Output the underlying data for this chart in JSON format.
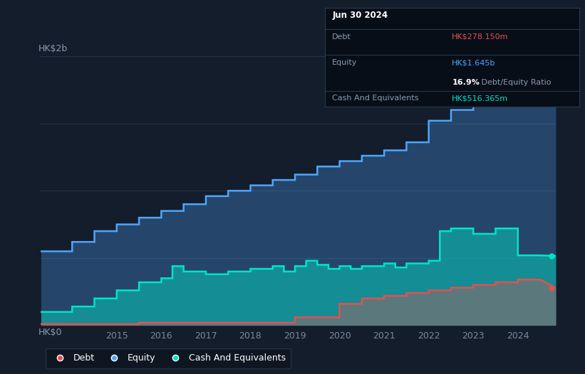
{
  "bg_color": "#141d2b",
  "plot_bg_color": "#141d2b",
  "grid_color": "#253347",
  "title_box": {
    "date": "Jun 30 2024",
    "debt_label": "Debt",
    "debt_value": "HK$278.150m",
    "debt_color": "#e05252",
    "equity_label": "Equity",
    "equity_value": "HK$1.645b",
    "equity_color": "#4da6ff",
    "ratio_bold": "16.9%",
    "ratio_text": " Debt/Equity Ratio",
    "cash_label": "Cash And Equivalents",
    "cash_value": "HK$516.365m",
    "cash_color": "#00e5c8",
    "box_bg": "#080e18",
    "box_border": "#2a3a4a"
  },
  "ylabel": "HK$2b",
  "ylabel_bottom": "HK$0",
  "ylim": [
    0,
    2.0
  ],
  "xlim": [
    2013.3,
    2024.85
  ],
  "year_ticks": [
    2015,
    2016,
    2017,
    2018,
    2019,
    2020,
    2021,
    2022,
    2023,
    2024
  ],
  "line_colors": {
    "debt": "#e05252",
    "equity": "#4da6ff",
    "cash": "#00e5c8"
  },
  "legend": [
    {
      "label": "Debt",
      "color": "#e05252"
    },
    {
      "label": "Equity",
      "color": "#4da6ff"
    },
    {
      "label": "Cash And Equivalents",
      "color": "#00e5c8"
    }
  ],
  "equity_data": {
    "x": [
      2013.3,
      2013.5,
      2014.0,
      2014.0,
      2014.5,
      2014.5,
      2015.0,
      2015.0,
      2015.5,
      2015.5,
      2016.0,
      2016.0,
      2016.5,
      2016.5,
      2017.0,
      2017.0,
      2017.5,
      2017.5,
      2018.0,
      2018.0,
      2018.5,
      2018.5,
      2019.0,
      2019.0,
      2019.5,
      2019.5,
      2020.0,
      2020.0,
      2020.5,
      2020.5,
      2021.0,
      2021.0,
      2021.5,
      2021.5,
      2022.0,
      2022.0,
      2022.5,
      2022.5,
      2023.0,
      2023.0,
      2023.5,
      2023.5,
      2024.0,
      2024.0,
      2024.5,
      2024.85
    ],
    "y": [
      0.55,
      0.55,
      0.55,
      0.62,
      0.62,
      0.7,
      0.7,
      0.75,
      0.75,
      0.8,
      0.8,
      0.85,
      0.85,
      0.9,
      0.9,
      0.96,
      0.96,
      1.0,
      1.0,
      1.04,
      1.04,
      1.08,
      1.08,
      1.12,
      1.12,
      1.18,
      1.18,
      1.22,
      1.22,
      1.26,
      1.26,
      1.3,
      1.3,
      1.36,
      1.36,
      1.52,
      1.52,
      1.6,
      1.6,
      1.65,
      1.65,
      1.9,
      1.9,
      1.75,
      1.75,
      1.645
    ]
  },
  "cash_data": {
    "x": [
      2013.3,
      2013.5,
      2014.0,
      2014.0,
      2014.5,
      2014.5,
      2015.0,
      2015.0,
      2015.5,
      2015.5,
      2016.0,
      2016.0,
      2016.25,
      2016.25,
      2016.5,
      2016.5,
      2017.0,
      2017.0,
      2017.5,
      2017.5,
      2018.0,
      2018.0,
      2018.5,
      2018.5,
      2018.75,
      2018.75,
      2019.0,
      2019.0,
      2019.25,
      2019.25,
      2019.5,
      2019.5,
      2019.75,
      2019.75,
      2020.0,
      2020.0,
      2020.25,
      2020.25,
      2020.5,
      2020.5,
      2021.0,
      2021.0,
      2021.25,
      2021.25,
      2021.5,
      2021.5,
      2022.0,
      2022.0,
      2022.25,
      2022.25,
      2022.5,
      2022.5,
      2023.0,
      2023.0,
      2023.5,
      2023.5,
      2024.0,
      2024.0,
      2024.5,
      2024.85
    ],
    "y": [
      0.1,
      0.1,
      0.1,
      0.14,
      0.14,
      0.2,
      0.2,
      0.26,
      0.26,
      0.32,
      0.32,
      0.35,
      0.35,
      0.44,
      0.44,
      0.4,
      0.4,
      0.38,
      0.38,
      0.4,
      0.4,
      0.42,
      0.42,
      0.44,
      0.44,
      0.4,
      0.4,
      0.44,
      0.44,
      0.48,
      0.48,
      0.45,
      0.45,
      0.42,
      0.42,
      0.44,
      0.44,
      0.42,
      0.42,
      0.44,
      0.44,
      0.46,
      0.46,
      0.43,
      0.43,
      0.46,
      0.46,
      0.48,
      0.48,
      0.7,
      0.7,
      0.72,
      0.72,
      0.68,
      0.68,
      0.72,
      0.72,
      0.52,
      0.52,
      0.516
    ]
  },
  "debt_data": {
    "x": [
      2013.3,
      2013.5,
      2014.0,
      2014.0,
      2014.5,
      2014.5,
      2015.0,
      2015.0,
      2015.5,
      2015.5,
      2016.0,
      2016.0,
      2016.5,
      2016.5,
      2017.0,
      2017.0,
      2017.5,
      2017.5,
      2018.0,
      2018.0,
      2018.5,
      2018.5,
      2019.0,
      2019.0,
      2019.5,
      2019.5,
      2020.0,
      2020.0,
      2020.5,
      2020.5,
      2021.0,
      2021.0,
      2021.5,
      2021.5,
      2022.0,
      2022.0,
      2022.5,
      2022.5,
      2023.0,
      2023.0,
      2023.5,
      2023.5,
      2024.0,
      2024.0,
      2024.5,
      2024.85
    ],
    "y": [
      0.01,
      0.01,
      0.01,
      0.01,
      0.01,
      0.01,
      0.01,
      0.01,
      0.01,
      0.02,
      0.02,
      0.02,
      0.02,
      0.02,
      0.02,
      0.02,
      0.02,
      0.02,
      0.02,
      0.02,
      0.02,
      0.02,
      0.02,
      0.06,
      0.06,
      0.06,
      0.06,
      0.16,
      0.16,
      0.2,
      0.2,
      0.22,
      0.22,
      0.24,
      0.24,
      0.26,
      0.26,
      0.28,
      0.28,
      0.3,
      0.3,
      0.32,
      0.32,
      0.34,
      0.34,
      0.278
    ]
  },
  "end_markers": {
    "equity_x": 2024.75,
    "equity_y": 1.645,
    "cash_x": 2024.75,
    "cash_y": 0.516,
    "debt_x": 2024.75,
    "debt_y": 0.278
  }
}
